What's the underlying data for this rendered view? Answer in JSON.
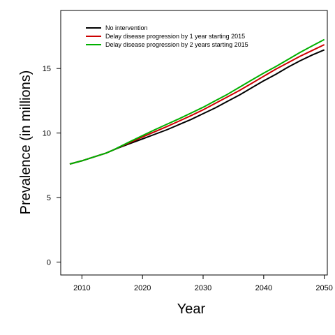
{
  "chart_data": {
    "type": "line",
    "title": "",
    "xlabel": "Year",
    "ylabel": "Prevalence (in millions)",
    "xlim": [
      2006.5,
      2050.5
    ],
    "ylim": [
      -1,
      19.5
    ],
    "xticks": [
      2010,
      2020,
      2030,
      2040,
      2050
    ],
    "yticks": [
      0,
      5,
      10,
      15
    ],
    "grid": false,
    "legend_position": "top-left",
    "x": [
      2008,
      2010,
      2012,
      2014,
      2015,
      2016,
      2018,
      2020,
      2022,
      2024,
      2026,
      2028,
      2030,
      2032,
      2034,
      2036,
      2038,
      2040,
      2042,
      2044,
      2046,
      2048,
      2050
    ],
    "series": [
      {
        "name": "No intervention",
        "color": "#000000",
        "values": [
          7.6,
          7.85,
          8.15,
          8.45,
          8.65,
          8.85,
          9.2,
          9.55,
          9.9,
          10.25,
          10.65,
          11.05,
          11.5,
          11.95,
          12.45,
          12.95,
          13.5,
          14.05,
          14.55,
          15.1,
          15.6,
          16.05,
          16.45
        ]
      },
      {
        "name": "Delay disease progression by 1 year starting 2015",
        "color": "#cc0000",
        "values": [
          7.6,
          7.85,
          8.15,
          8.45,
          8.65,
          8.87,
          9.28,
          9.7,
          10.1,
          10.5,
          10.92,
          11.35,
          11.8,
          12.3,
          12.8,
          13.3,
          13.85,
          14.4,
          14.95,
          15.45,
          15.95,
          16.4,
          16.85
        ]
      },
      {
        "name": "Delay disease progression by 2 years starting 2015",
        "color": "#00b000",
        "values": [
          7.6,
          7.85,
          8.15,
          8.45,
          8.65,
          8.88,
          9.35,
          9.8,
          10.25,
          10.68,
          11.1,
          11.55,
          12.0,
          12.5,
          13.0,
          13.55,
          14.1,
          14.65,
          15.15,
          15.7,
          16.25,
          16.75,
          17.25
        ]
      }
    ]
  }
}
